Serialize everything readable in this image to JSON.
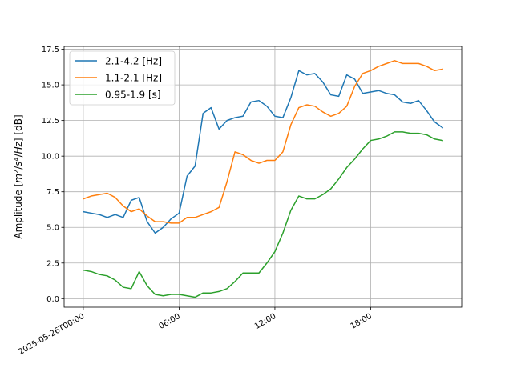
{
  "chart_data": {
    "type": "line",
    "title": "",
    "xlabel": "",
    "ylabel_parts": {
      "prefix": "Amplitude [",
      "m": "m",
      "m_exp": "2",
      "slash1": "/",
      "s": "s",
      "s_exp": "4",
      "slash2": "/",
      "hz": "Hz",
      "suffix": "] [dB]"
    },
    "x_unit": "hours since 2025-05-26T00:00",
    "xlim": [
      -1.2,
      23.7
    ],
    "ylim": [
      -0.6,
      17.7
    ],
    "yticks": [
      0.0,
      2.5,
      5.0,
      7.5,
      10.0,
      12.5,
      15.0,
      17.5
    ],
    "ytick_labels": [
      "0.0",
      "2.5",
      "5.0",
      "7.5",
      "10.0",
      "12.5",
      "15.0",
      "17.5"
    ],
    "xticks": [
      0,
      6,
      12,
      18
    ],
    "xtick_labels": [
      "2025-05-26T00:00",
      "06:00",
      "12:00",
      "18:00"
    ],
    "grid": true,
    "legend_position": "top-left",
    "x": [
      0,
      0.5,
      1,
      1.5,
      2,
      2.5,
      3,
      3.5,
      4,
      4.5,
      5,
      5.5,
      6,
      6.5,
      7,
      7.5,
      8,
      8.5,
      9,
      9.5,
      10,
      10.5,
      11,
      11.5,
      12,
      12.5,
      13,
      13.5,
      14,
      14.5,
      15,
      15.5,
      16,
      16.5,
      17,
      17.5,
      18,
      18.5,
      19,
      19.5,
      20,
      20.5,
      21,
      21.5,
      22,
      22.5
    ],
    "series": [
      {
        "name": "2.1-4.2 [Hz]",
        "color": "#1f77b4",
        "values": [
          6.1,
          6.0,
          5.9,
          5.7,
          5.9,
          5.7,
          6.9,
          7.1,
          5.4,
          4.6,
          5.0,
          5.6,
          6.0,
          8.6,
          9.3,
          13.0,
          13.4,
          11.9,
          12.5,
          12.7,
          12.8,
          13.8,
          13.9,
          13.5,
          12.8,
          12.7,
          14.1,
          16.0,
          15.7,
          15.8,
          15.2,
          14.3,
          14.2,
          15.7,
          15.4,
          14.4,
          14.5,
          14.6,
          14.4,
          14.3,
          13.8,
          13.7,
          13.9,
          13.2,
          12.4,
          12.0
        ]
      },
      {
        "name": "1.1-2.1 [Hz]",
        "color": "#ff7f0e",
        "values": [
          7.0,
          7.2,
          7.3,
          7.4,
          7.1,
          6.5,
          6.1,
          6.3,
          5.8,
          5.4,
          5.4,
          5.3,
          5.3,
          5.7,
          5.7,
          5.9,
          6.1,
          6.4,
          8.2,
          10.3,
          10.1,
          9.7,
          9.5,
          9.7,
          9.7,
          10.3,
          12.2,
          13.4,
          13.6,
          13.5,
          13.1,
          12.8,
          13.0,
          13.5,
          14.9,
          15.8,
          16.0,
          16.3,
          16.5,
          16.7,
          16.5,
          16.5,
          16.5,
          16.3,
          16.0,
          16.1
        ]
      },
      {
        "name": "0.95-1.9 [s]",
        "color": "#2ca02c",
        "values": [
          2.0,
          1.9,
          1.7,
          1.6,
          1.3,
          0.8,
          0.7,
          1.9,
          0.9,
          0.3,
          0.2,
          0.3,
          0.3,
          0.2,
          0.1,
          0.4,
          0.4,
          0.5,
          0.7,
          1.2,
          1.8,
          1.8,
          1.8,
          2.5,
          3.3,
          4.6,
          6.2,
          7.2,
          7.0,
          7.0,
          7.3,
          7.7,
          8.4,
          9.2,
          9.8,
          10.5,
          11.1,
          11.2,
          11.4,
          11.7,
          11.7,
          11.6,
          11.6,
          11.5,
          11.2,
          11.1
        ]
      }
    ]
  }
}
